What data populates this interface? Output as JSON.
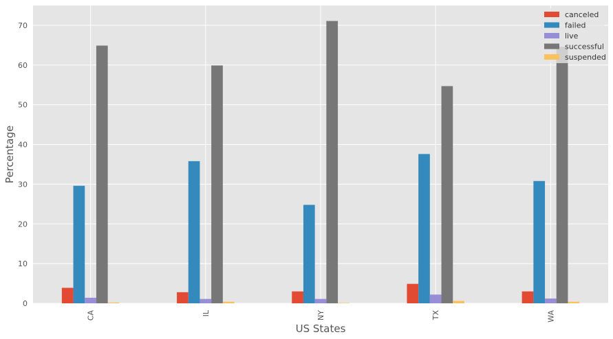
{
  "chart_data": {
    "type": "bar",
    "title": "",
    "xlabel": "US States",
    "ylabel": "Percentage",
    "categories": [
      "CA",
      "IL",
      "NY",
      "TX",
      "WA"
    ],
    "ylim": [
      0,
      75
    ],
    "yticks": [
      0,
      10,
      20,
      30,
      40,
      50,
      60,
      70
    ],
    "grid": true,
    "legend_position": "top-right",
    "series": [
      {
        "name": "canceled",
        "color": "#E24A33",
        "values": [
          3.9,
          2.8,
          3.0,
          4.9,
          3.0
        ]
      },
      {
        "name": "failed",
        "color": "#348ABD",
        "values": [
          29.6,
          35.8,
          24.8,
          37.6,
          30.8
        ]
      },
      {
        "name": "live",
        "color": "#988ED5",
        "values": [
          1.4,
          1.1,
          1.1,
          2.2,
          1.2
        ]
      },
      {
        "name": "successful",
        "color": "#777777",
        "values": [
          64.9,
          59.9,
          71.1,
          54.7,
          64.6
        ]
      },
      {
        "name": "suspended",
        "color": "#FBC15E",
        "values": [
          0.2,
          0.4,
          0.1,
          0.6,
          0.4
        ]
      }
    ]
  }
}
